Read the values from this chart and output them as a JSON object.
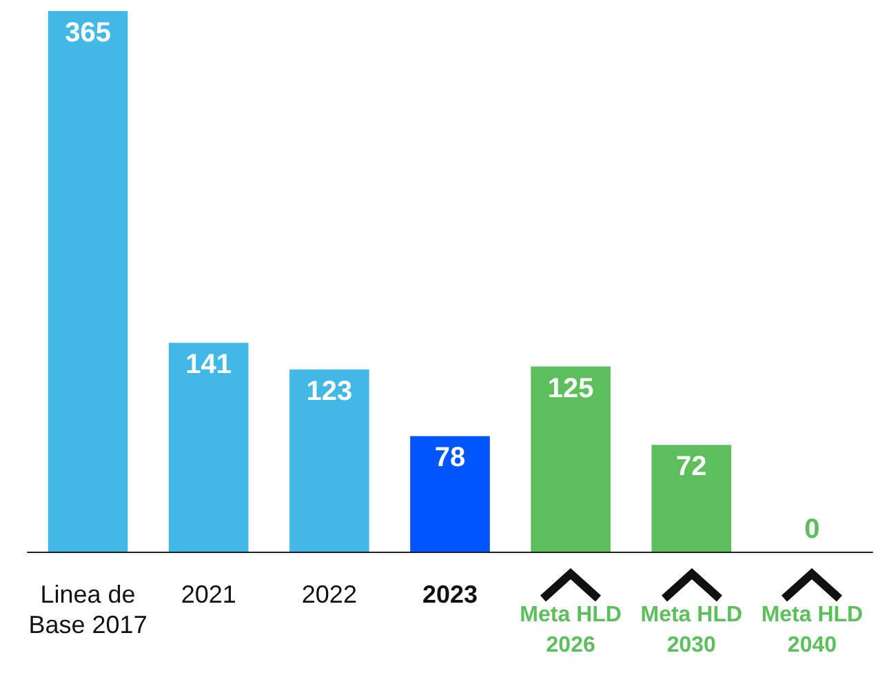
{
  "chart_data": {
    "type": "bar",
    "categories": [
      "Linea de\nBase 2017",
      "2021",
      "2022",
      "2023",
      "Meta HLD\n2026",
      "Meta HLD\n2030",
      "Meta HLD\n2040"
    ],
    "values": [
      365,
      141,
      123,
      78,
      125,
      72,
      0
    ],
    "colors": [
      "#41b8e6",
      "#41b8e6",
      "#41b8e6",
      "#0055ff",
      "#5cbf5c",
      "#5cbf5c",
      "#5cbf5c"
    ],
    "data_labels": true
  }
}
